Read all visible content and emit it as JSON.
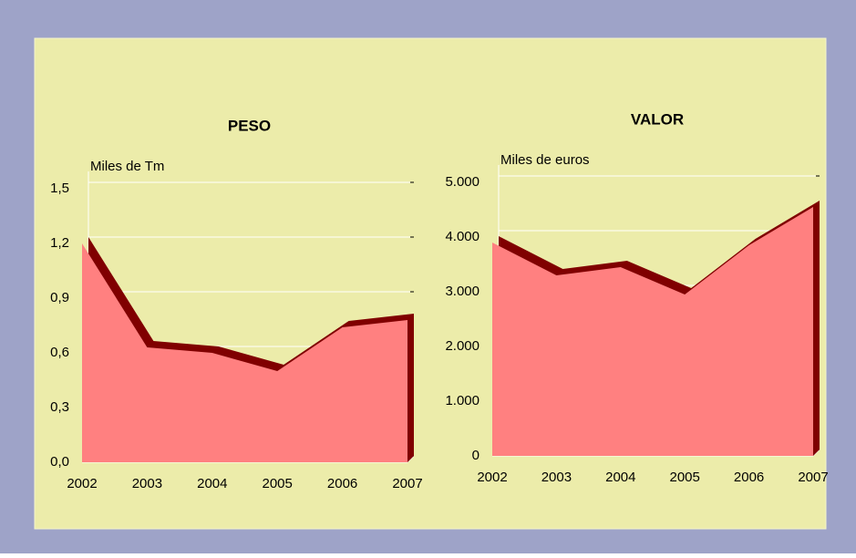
{
  "chart_data": [
    {
      "type": "area",
      "title": "PESO",
      "y_label": "Miles de Tm",
      "categories": [
        "2002",
        "2003",
        "2004",
        "2005",
        "2006",
        "2007"
      ],
      "values": [
        1.2,
        0.63,
        0.6,
        0.5,
        0.74,
        0.78
      ],
      "color": "#ff8080",
      "depth_color": "#800000",
      "ylim": [
        0,
        1.5
      ],
      "yticks": [
        {
          "value": 0,
          "label": "0,0"
        },
        {
          "value": 0.3,
          "label": "0,3"
        },
        {
          "value": 0.6,
          "label": "0,6"
        },
        {
          "value": 0.9,
          "label": "0,9"
        },
        {
          "value": 1.2,
          "label": "1,2"
        },
        {
          "value": 1.5,
          "label": "1,5"
        }
      ],
      "grid": true
    },
    {
      "type": "area",
      "title": "VALOR",
      "y_label": "Miles de euros",
      "categories": [
        "2002",
        "2003",
        "2004",
        "2005",
        "2006",
        "2007"
      ],
      "values": [
        3900,
        3300,
        3450,
        2950,
        3850,
        4550
      ],
      "color": "#ff8080",
      "depth_color": "#800000",
      "ylim": [
        0,
        5000
      ],
      "yticks": [
        0,
        {
          "value": 1000,
          "label": "1.000"
        },
        {
          "value": 2000,
          "label": "2.000"
        },
        {
          "value": 3000,
          "label": "3.000"
        },
        {
          "value": 4000,
          "label": "4.000"
        },
        {
          "value": 5000,
          "label": "5.000"
        }
      ],
      "grid": true
    }
  ]
}
